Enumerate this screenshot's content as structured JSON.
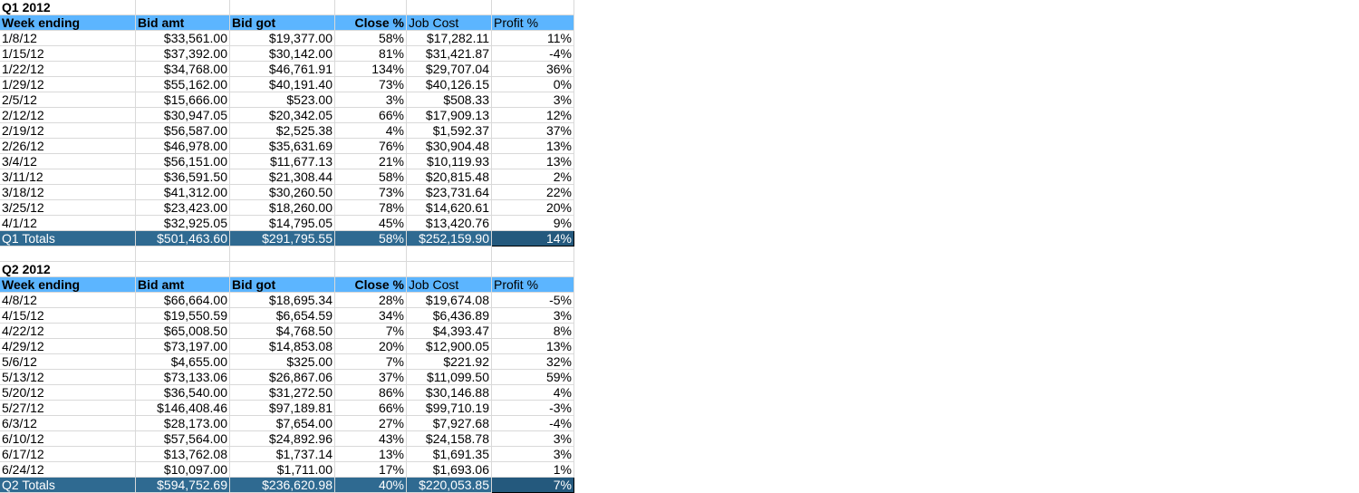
{
  "q1": {
    "title": "Q1 2012",
    "headers": [
      "Week ending",
      "Bid amt",
      "Bid got",
      "Close %",
      "Job Cost",
      "Profit %"
    ],
    "rows": [
      [
        "1/8/12",
        "$33,561.00",
        "$19,377.00",
        "58%",
        "$17,282.11",
        "11%"
      ],
      [
        "1/15/12",
        "$37,392.00",
        "$30,142.00",
        "81%",
        "$31,421.87",
        "-4%"
      ],
      [
        "1/22/12",
        "$34,768.00",
        "$46,761.91",
        "134%",
        "$29,707.04",
        "36%"
      ],
      [
        "1/29/12",
        "$55,162.00",
        "$40,191.40",
        "73%",
        "$40,126.15",
        "0%"
      ],
      [
        "2/5/12",
        "$15,666.00",
        "$523.00",
        "3%",
        "$508.33",
        "3%"
      ],
      [
        "2/12/12",
        "$30,947.05",
        "$20,342.05",
        "66%",
        "$17,909.13",
        "12%"
      ],
      [
        "2/19/12",
        "$56,587.00",
        "$2,525.38",
        "4%",
        "$1,592.37",
        "37%"
      ],
      [
        "2/26/12",
        "$46,978.00",
        "$35,631.69",
        "76%",
        "$30,904.48",
        "13%"
      ],
      [
        "3/4/12",
        "$56,151.00",
        "$11,677.13",
        "21%",
        "$10,119.93",
        "13%"
      ],
      [
        "3/11/12",
        "$36,591.50",
        "$21,308.44",
        "58%",
        "$20,815.48",
        "2%"
      ],
      [
        "3/18/12",
        "$41,312.00",
        "$30,260.50",
        "73%",
        "$23,731.64",
        "22%"
      ],
      [
        "3/25/12",
        "$23,423.00",
        "$18,260.00",
        "78%",
        "$14,620.61",
        "20%"
      ],
      [
        "4/1/12",
        "$32,925.05",
        "$14,795.05",
        "45%",
        "$13,420.76",
        "9%"
      ]
    ],
    "totals": [
      "Q1 Totals",
      "$501,463.60",
      "$291,795.55",
      "58%",
      "$252,159.90",
      "14%"
    ]
  },
  "q2": {
    "title": "Q2 2012",
    "headers": [
      "Week ending",
      "Bid amt",
      "Bid got",
      "Close %",
      "Job Cost",
      "Profit %"
    ],
    "rows": [
      [
        "4/8/12",
        "$66,664.00",
        "$18,695.34",
        "28%",
        "$19,674.08",
        "-5%"
      ],
      [
        "4/15/12",
        "$19,550.59",
        "$6,654.59",
        "34%",
        "$6,436.89",
        "3%"
      ],
      [
        "4/22/12",
        "$65,008.50",
        "$4,768.50",
        "7%",
        "$4,393.47",
        "8%"
      ],
      [
        "4/29/12",
        "$73,197.00",
        "$14,853.08",
        "20%",
        "$12,900.05",
        "13%"
      ],
      [
        "5/6/12",
        "$4,655.00",
        "$325.00",
        "7%",
        "$221.92",
        "32%"
      ],
      [
        "5/13/12",
        "$73,133.06",
        "$26,867.06",
        "37%",
        "$11,099.50",
        "59%"
      ],
      [
        "5/20/12",
        "$36,540.00",
        "$31,272.50",
        "86%",
        "$30,146.88",
        "4%"
      ],
      [
        "5/27/12",
        "$146,408.46",
        "$97,189.81",
        "66%",
        "$99,710.19",
        "-3%"
      ],
      [
        "6/3/12",
        "$28,173.00",
        "$7,654.00",
        "27%",
        "$7,927.68",
        "-4%"
      ],
      [
        "6/10/12",
        "$57,564.00",
        "$24,892.96",
        "43%",
        "$24,158.78",
        "3%"
      ],
      [
        "6/17/12",
        "$13,762.08",
        "$1,737.14",
        "13%",
        "$1,691.35",
        "3%"
      ],
      [
        "6/24/12",
        "$10,097.00",
        "$1,711.00",
        "17%",
        "$1,693.06",
        "1%"
      ]
    ],
    "totals": [
      "Q2 Totals",
      "$594,752.69",
      "$236,620.98",
      "40%",
      "$220,053.85",
      "7%"
    ]
  },
  "colors": {
    "header_bg": "#5cb5ff",
    "totals_bg": "#2f6a91",
    "grid": "#d9d9d9"
  }
}
